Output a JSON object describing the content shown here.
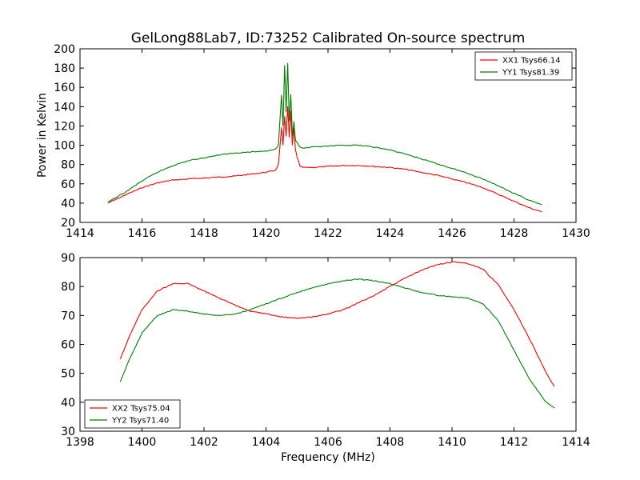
{
  "title": "GelLong88Lab7, ID:73252 Calibrated On-source spectrum",
  "chart_data": [
    {
      "type": "line",
      "ylabel": "Power in Kelvin",
      "xlabel": "",
      "xlim": [
        1414,
        1430
      ],
      "ylim": [
        20,
        200
      ],
      "xticks": [
        1414,
        1416,
        1418,
        1420,
        1422,
        1424,
        1426,
        1428,
        1430
      ],
      "yticks": [
        20,
        40,
        60,
        80,
        100,
        120,
        140,
        160,
        180,
        200
      ],
      "legend": "top-right",
      "series": [
        {
          "name": "XX1 Tsys66.14",
          "color": "#ff0000",
          "x": [
            1414.9,
            1415.5,
            1416.0,
            1416.5,
            1417.0,
            1417.5,
            1418.0,
            1418.5,
            1419.0,
            1419.5,
            1420.0,
            1420.3,
            1420.4,
            1420.5,
            1420.55,
            1420.6,
            1420.65,
            1420.7,
            1420.75,
            1420.8,
            1420.85,
            1420.9,
            1420.95,
            1421.0,
            1421.1,
            1421.2,
            1421.5,
            1422.0,
            1422.5,
            1423.0,
            1423.5,
            1424.0,
            1424.5,
            1425.0,
            1425.5,
            1426.0,
            1426.5,
            1427.0,
            1427.5,
            1428.0,
            1428.5,
            1428.9
          ],
          "y": [
            40,
            49,
            56,
            61,
            64,
            65,
            66,
            67,
            68,
            70,
            72,
            74,
            80,
            118,
            100,
            130,
            110,
            140,
            108,
            135,
            100,
            118,
            95,
            88,
            78,
            77,
            77,
            78,
            79,
            79,
            78,
            77,
            75,
            72,
            69,
            65,
            61,
            56,
            49,
            42,
            35,
            31
          ]
        },
        {
          "name": "YY1 Tsys81.39",
          "color": "#008000",
          "x": [
            1414.9,
            1415.5,
            1416.0,
            1416.5,
            1417.0,
            1417.5,
            1418.0,
            1418.5,
            1419.0,
            1419.5,
            1420.0,
            1420.3,
            1420.4,
            1420.5,
            1420.55,
            1420.6,
            1420.65,
            1420.7,
            1420.75,
            1420.8,
            1420.85,
            1420.9,
            1420.95,
            1421.0,
            1421.1,
            1421.2,
            1421.5,
            1422.0,
            1422.5,
            1423.0,
            1423.5,
            1424.0,
            1424.5,
            1425.0,
            1425.5,
            1426.0,
            1426.5,
            1427.0,
            1427.5,
            1428.0,
            1428.5,
            1428.9
          ],
          "y": [
            41,
            52,
            63,
            72,
            79,
            84,
            87,
            90,
            92,
            93,
            94,
            96,
            100,
            152,
            120,
            183,
            135,
            185,
            125,
            153,
            110,
            125,
            105,
            103,
            98,
            97,
            98,
            99,
            100,
            100,
            98,
            95,
            91,
            86,
            81,
            76,
            71,
            65,
            58,
            50,
            43,
            38
          ]
        }
      ]
    },
    {
      "type": "line",
      "ylabel": "",
      "xlabel": "Frequency (MHz)",
      "xlim": [
        1398,
        1414
      ],
      "ylim": [
        30,
        90
      ],
      "xticks": [
        1398,
        1400,
        1402,
        1404,
        1406,
        1408,
        1410,
        1412,
        1414
      ],
      "yticks": [
        30,
        40,
        50,
        60,
        70,
        80,
        90
      ],
      "legend": "bottom-left",
      "series": [
        {
          "name": "XX2 Tsys75.04",
          "color": "#ff0000",
          "x": [
            1399.3,
            1399.6,
            1400.0,
            1400.5,
            1401.0,
            1401.5,
            1402.0,
            1402.5,
            1403.0,
            1403.5,
            1404.0,
            1404.5,
            1405.0,
            1405.5,
            1406.0,
            1406.5,
            1407.0,
            1407.5,
            1408.0,
            1408.5,
            1409.0,
            1409.5,
            1410.0,
            1410.5,
            1411.0,
            1411.5,
            1412.0,
            1412.5,
            1413.0,
            1413.3
          ],
          "y": [
            55,
            63,
            72,
            78.5,
            81,
            81,
            78.5,
            76,
            73.5,
            71.5,
            70.5,
            69.5,
            69,
            69.5,
            70.5,
            72,
            74.5,
            77,
            80,
            83,
            85.5,
            87.5,
            88.5,
            88,
            86,
            80.5,
            72,
            62,
            51,
            45.5
          ]
        },
        {
          "name": "YY2 Tsys71.40",
          "color": "#008000",
          "x": [
            1399.3,
            1399.6,
            1400.0,
            1400.5,
            1401.0,
            1401.5,
            1402.0,
            1402.5,
            1403.0,
            1403.5,
            1404.0,
            1404.5,
            1405.0,
            1405.5,
            1406.0,
            1406.5,
            1407.0,
            1407.5,
            1408.0,
            1408.5,
            1409.0,
            1409.5,
            1410.0,
            1410.5,
            1411.0,
            1411.5,
            1412.0,
            1412.5,
            1413.0,
            1413.3
          ],
          "y": [
            47,
            55,
            64,
            70,
            72,
            71.5,
            70.5,
            70,
            70.5,
            72,
            74,
            76,
            78,
            79.5,
            81,
            82,
            82.5,
            82,
            81,
            79.5,
            78,
            77,
            76.5,
            76,
            74,
            68,
            58,
            48,
            40.5,
            38
          ]
        }
      ]
    }
  ]
}
